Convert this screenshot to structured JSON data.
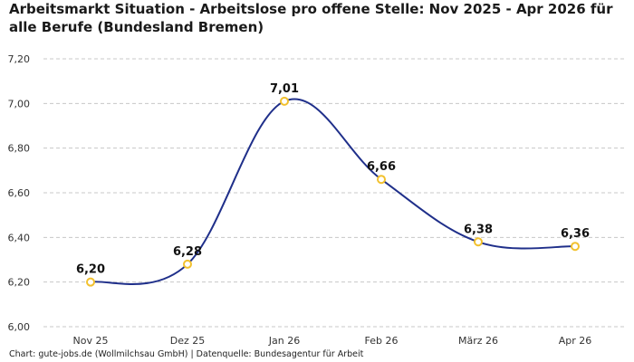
{
  "title": "Arbeitsmarkt Situation - Arbeitslose pro offene Stelle: Nov 2025 - Apr 2026 für alle Berufe (Bundesland Bremen)",
  "footer": "Chart: gute-jobs.de (Wollmilchsau GmbH) | Datenquelle: Bundesagentur für Arbeit",
  "chart_data": {
    "type": "line",
    "categories": [
      "Nov 25",
      "Dez 25",
      "Jan 26",
      "Feb 26",
      "März 26",
      "Apr 26"
    ],
    "values": [
      6.2,
      6.28,
      7.01,
      6.66,
      6.38,
      6.36
    ],
    "data_labels": [
      "6,20",
      "6,28",
      "7,01",
      "6,66",
      "6,38",
      "6,36"
    ],
    "yticks": [
      6.0,
      6.2,
      6.4,
      6.6,
      6.8,
      7.0,
      7.2
    ],
    "ytick_labels": [
      "6,00",
      "6,20",
      "6,40",
      "6,60",
      "6,80",
      "7,00",
      "7,20"
    ],
    "ylim": [
      6.0,
      7.2
    ],
    "grid": true,
    "line_color": "#1f2f8a",
    "marker_color": "#f2c12e"
  }
}
